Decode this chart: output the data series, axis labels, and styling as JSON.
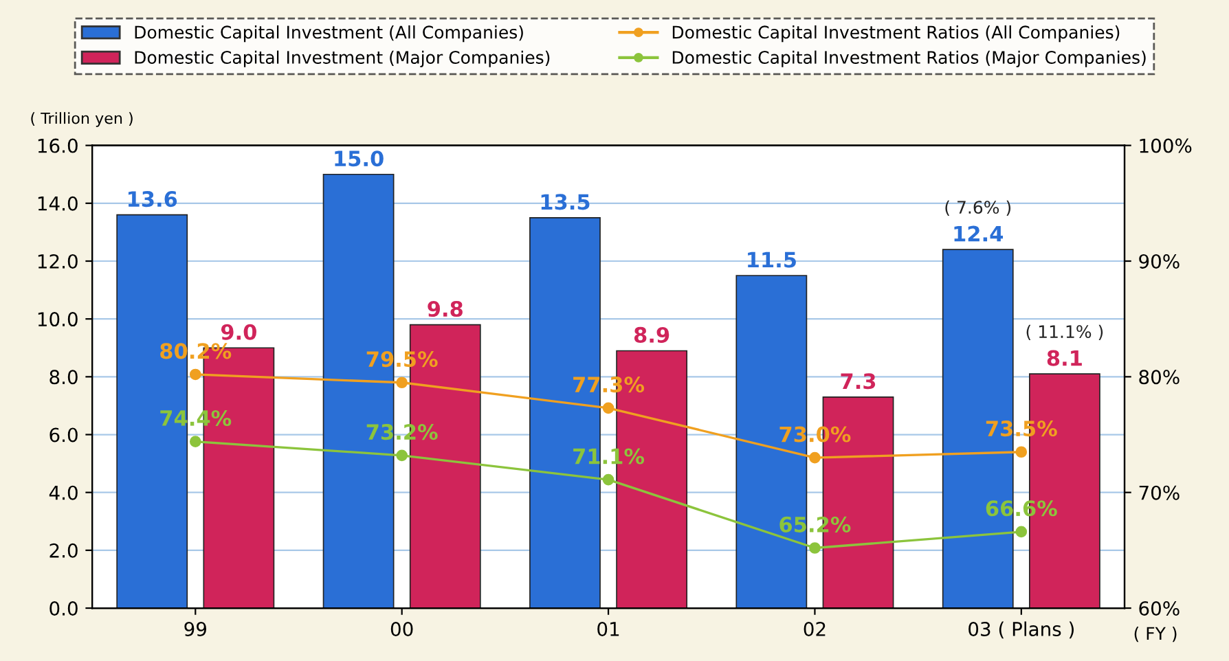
{
  "chart_data": {
    "type": "bar",
    "categories": [
      "99",
      "00",
      "01",
      "02",
      "03 ( Plans )"
    ],
    "xlabel": "( FY )",
    "ylabel": "( Trillion yen )",
    "ylim": [
      0,
      16
    ],
    "yticks": [
      {
        "value": 0,
        "label": "0.0"
      },
      {
        "value": 2,
        "label": "2.0"
      },
      {
        "value": 4,
        "label": "4.0"
      },
      {
        "value": 6,
        "label": "6.0"
      },
      {
        "value": 8,
        "label": "8.0"
      },
      {
        "value": 10,
        "label": "10.0"
      },
      {
        "value": 12,
        "label": "12.0"
      },
      {
        "value": 14,
        "label": "14.0"
      },
      {
        "value": 16,
        "label": "16.0"
      }
    ],
    "y2lim": [
      60,
      100
    ],
    "y2ticks": [
      {
        "value": 60,
        "label": "60%"
      },
      {
        "value": 70,
        "label": "70%"
      },
      {
        "value": 80,
        "label": "80%"
      },
      {
        "value": 90,
        "label": "90%"
      },
      {
        "value": 100,
        "label": "100%"
      }
    ],
    "grid": "y",
    "legend": "top",
    "marker": "circle",
    "series": [
      {
        "name": "Domestic Capital Investment (All Companies)",
        "color": "#2a6fd6",
        "values": [
          13.6,
          15.0,
          13.5,
          11.5,
          12.4
        ],
        "value_labels": [
          "13.6",
          "15.0",
          "13.5",
          "11.5",
          "12.4"
        ]
      },
      {
        "name": "Domestic Capital Investment (Major Companies)",
        "color": "#d0245a",
        "values": [
          9.0,
          9.8,
          8.9,
          7.3,
          8.1
        ],
        "value_labels": [
          "9.0",
          "9.8",
          "8.9",
          "7.3",
          "8.1"
        ]
      },
      {
        "name": "Domestic Capital Investment Ratios (All Companies)",
        "type": "line",
        "axis": "y2",
        "color": "#f0a020",
        "values": [
          80.2,
          79.5,
          77.3,
          73.0,
          73.5
        ],
        "value_labels": [
          "80.2%",
          "79.5%",
          "77.3%",
          "73.0%",
          "73.5%"
        ]
      },
      {
        "name": "Domestic Capital Investment Ratios (Major Companies)",
        "type": "line",
        "axis": "y2",
        "color": "#8cc43c",
        "values": [
          74.4,
          73.2,
          71.1,
          65.2,
          66.6
        ],
        "value_labels": [
          "74.4%",
          "73.2%",
          "71.1%",
          "65.2%",
          "66.6%"
        ]
      }
    ],
    "annotations": [
      "( 7.6% )",
      "( 11.1% )"
    ]
  }
}
